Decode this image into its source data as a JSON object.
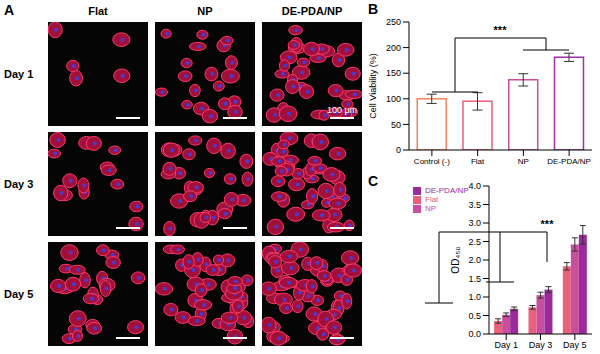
{
  "panel_a": {
    "label": "A",
    "columns": [
      "Flat",
      "NP",
      "DE-PDA/NP"
    ],
    "rows": [
      "Day 1",
      "Day 3",
      "Day 5"
    ],
    "scale_bar": "100 μm"
  },
  "chart_data": [
    {
      "panel": "B",
      "type": "bar",
      "y_label": "Cell Viability (%)",
      "categories": [
        "Control (-)",
        "Flat",
        "NP",
        "DE-PDA/NP"
      ],
      "values": [
        100,
        95,
        137,
        181
      ],
      "errors": [
        9,
        17,
        12,
        8
      ],
      "colors": [
        "#f4845f",
        "#e9607a",
        "#c94f9e",
        "#a12fa5"
      ],
      "ylim": [
        0,
        250
      ],
      "yticks": [
        0,
        50,
        100,
        150,
        200,
        250
      ],
      "annotations": [
        "***"
      ]
    },
    {
      "panel": "C",
      "type": "bar",
      "y_label": "OD₄₅₀",
      "categories": [
        "Day 1",
        "Day 3",
        "Day 5"
      ],
      "series": [
        {
          "name": "Flat",
          "color": "#e9607a",
          "values": [
            0.35,
            0.72,
            1.83
          ],
          "errors": [
            0.06,
            0.05,
            0.1
          ]
        },
        {
          "name": "NP",
          "color": "#c94f9e",
          "values": [
            0.52,
            1.05,
            2.42
          ],
          "errors": [
            0.05,
            0.08,
            0.18
          ]
        },
        {
          "name": "DE-PDA/NP",
          "color": "#9b2a9e",
          "values": [
            0.68,
            1.2,
            2.68
          ],
          "errors": [
            0.05,
            0.08,
            0.25
          ]
        }
      ],
      "ylim": [
        0,
        4
      ],
      "yticks": [
        {
          "value": 0,
          "label": "0.0"
        },
        {
          "value": 0.5,
          "label": "0.5"
        },
        {
          "value": 1,
          "label": "1.0"
        },
        {
          "value": 1.5,
          "label": "1.5"
        },
        {
          "value": 2,
          "label": "2.0"
        },
        {
          "value": 2.5,
          "label": "2.5"
        },
        {
          "value": 3,
          "label": "3.0"
        },
        {
          "value": 3.5,
          "label": "3.5"
        },
        {
          "value": 4,
          "label": "4.0"
        }
      ],
      "legend": "upper left",
      "annotations": [
        "***"
      ]
    }
  ]
}
